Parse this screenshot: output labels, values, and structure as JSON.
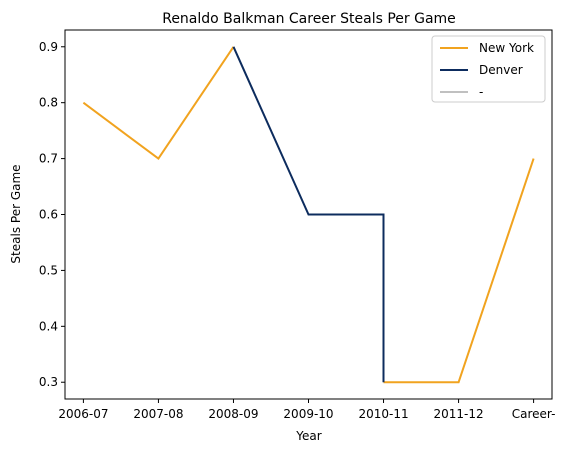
{
  "chart_data": {
    "type": "line",
    "title": "Renaldo Balkman Career Steals Per Game",
    "xlabel": "Year",
    "ylabel": "Steals Per Game",
    "categories": [
      "2006-07",
      "2007-08",
      "2008-09",
      "2009-10",
      "2010-11",
      "2011-12",
      "Career-"
    ],
    "yticks": [
      "0.3",
      "0.4",
      "0.5",
      "0.6",
      "0.7",
      "0.8",
      "0.9"
    ],
    "ylim": [
      0.27,
      0.93
    ],
    "grid": false,
    "legend_position": "top-right",
    "series": [
      {
        "name": "New York",
        "color": "#f1a31f",
        "points": [
          {
            "x": "2006-07",
            "y": 0.8
          },
          {
            "x": "2007-08",
            "y": 0.7
          },
          {
            "x": "2008-09",
            "y": 0.9
          },
          {
            "x": "2010-11",
            "y": 0.3
          },
          {
            "x": "2011-12",
            "y": 0.3
          },
          {
            "x": "Career-",
            "y": 0.7
          }
        ],
        "segments": [
          [
            0,
            2
          ],
          [
            3,
            5
          ]
        ]
      },
      {
        "name": "Denver",
        "color": "#0d2c5e",
        "points": [
          {
            "x": "2008-09",
            "y": 0.9
          },
          {
            "x": "2009-10",
            "y": 0.6
          },
          {
            "x": "2010-11",
            "y": 0.6
          },
          {
            "x": "2010-11",
            "y": 0.3
          }
        ],
        "segments": [
          [
            0,
            3
          ]
        ]
      },
      {
        "name": "-",
        "color": "#c0c0c0",
        "points": [],
        "segments": []
      }
    ]
  }
}
